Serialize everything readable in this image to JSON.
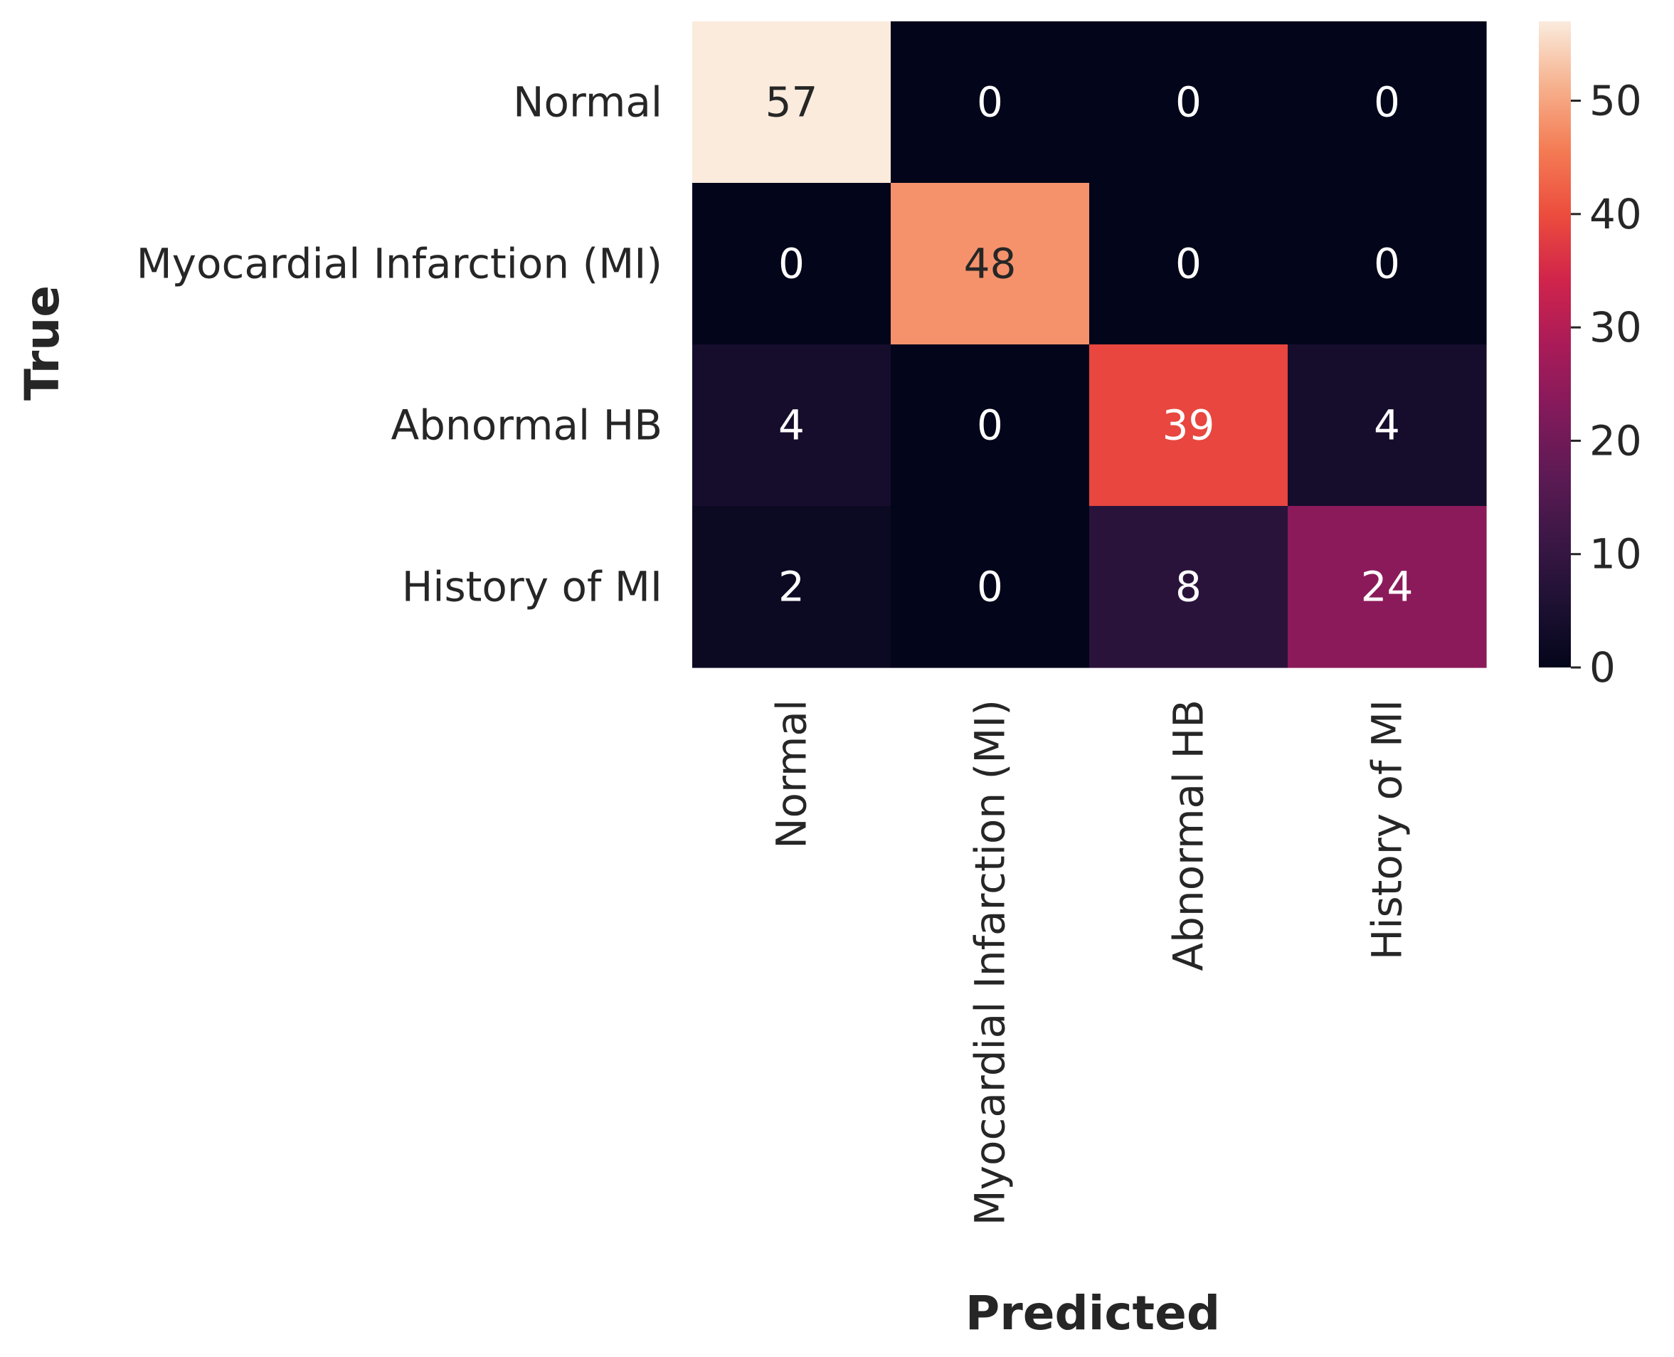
{
  "chart_data": {
    "type": "heatmap",
    "title": "",
    "xlabel": "Predicted",
    "ylabel": "True",
    "x_categories": [
      "Normal",
      "Myocardial Infarction (MI)",
      "Abnormal HB",
      "History of MI"
    ],
    "y_categories": [
      "Normal",
      "Myocardial Infarction (MI)",
      "Abnormal HB",
      "History of MI"
    ],
    "values": [
      [
        57,
        0,
        0,
        0
      ],
      [
        0,
        48,
        0,
        0
      ],
      [
        4,
        0,
        39,
        4
      ],
      [
        2,
        0,
        8,
        24
      ]
    ],
    "colorbar": {
      "range": [
        0,
        57
      ],
      "ticks": [
        0,
        10,
        20,
        30,
        40,
        50
      ],
      "colormap": "rocket"
    },
    "grid": false
  }
}
